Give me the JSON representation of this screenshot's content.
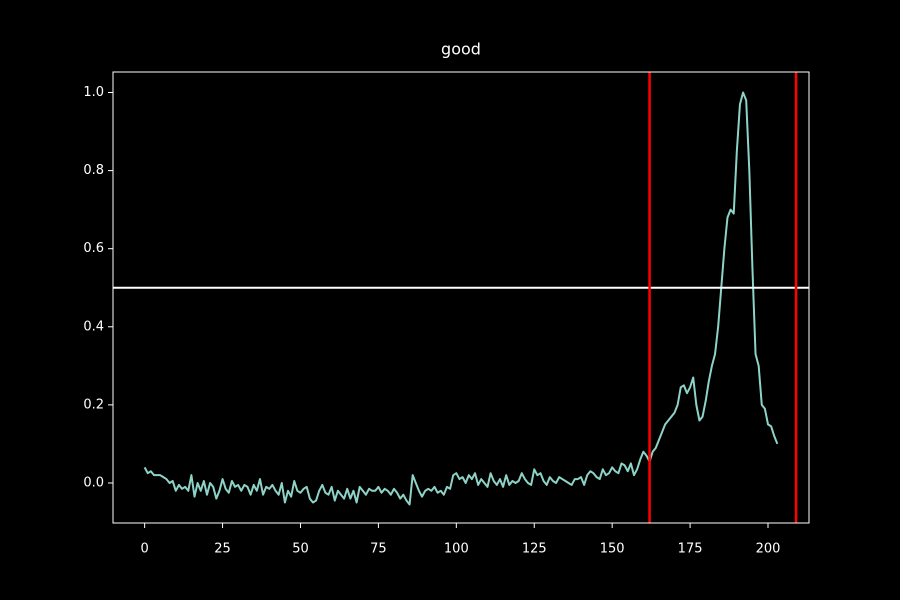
{
  "chart_data": {
    "type": "line",
    "title": "good",
    "color": "#8dd3c7",
    "x": [
      0,
      1,
      2,
      3,
      4,
      5,
      6,
      7,
      8,
      9,
      10,
      11,
      12,
      13,
      14,
      15,
      16,
      17,
      18,
      19,
      20,
      21,
      22,
      23,
      24,
      25,
      26,
      27,
      28,
      29,
      30,
      31,
      32,
      33,
      34,
      35,
      36,
      37,
      38,
      39,
      40,
      41,
      42,
      43,
      44,
      45,
      46,
      47,
      48,
      49,
      50,
      51,
      52,
      53,
      54,
      55,
      56,
      57,
      58,
      59,
      60,
      61,
      62,
      63,
      64,
      65,
      66,
      67,
      68,
      69,
      70,
      71,
      72,
      73,
      74,
      75,
      76,
      77,
      78,
      79,
      80,
      81,
      82,
      83,
      84,
      85,
      86,
      87,
      88,
      89,
      90,
      91,
      92,
      93,
      94,
      95,
      96,
      97,
      98,
      99,
      100,
      101,
      102,
      103,
      104,
      105,
      106,
      107,
      108,
      109,
      110,
      111,
      112,
      113,
      114,
      115,
      116,
      117,
      118,
      119,
      120,
      121,
      122,
      123,
      124,
      125,
      126,
      127,
      128,
      129,
      130,
      131,
      132,
      133,
      134,
      135,
      136,
      137,
      138,
      139,
      140,
      141,
      142,
      143,
      144,
      145,
      146,
      147,
      148,
      149,
      150,
      151,
      152,
      153,
      154,
      155,
      156,
      157,
      158,
      159,
      160,
      161,
      162,
      163,
      164,
      165,
      166,
      167,
      168,
      169,
      170,
      171,
      172,
      173,
      174,
      175,
      176,
      177,
      178,
      179,
      180,
      181,
      182,
      183,
      184,
      185,
      186,
      187,
      188,
      189,
      190,
      191,
      192,
      193,
      194,
      195,
      196,
      197,
      198,
      199,
      200,
      201,
      202,
      203
    ],
    "values": [
      0.04,
      0.025,
      0.03,
      0.02,
      0.02,
      0.02,
      0.015,
      0.01,
      0.0,
      0.005,
      -0.02,
      -0.005,
      -0.015,
      -0.01,
      -0.02,
      0.02,
      -0.035,
      0.0,
      -0.02,
      0.005,
      -0.03,
      0.0,
      -0.01,
      -0.04,
      -0.02,
      0.01,
      -0.015,
      -0.025,
      0.005,
      -0.01,
      -0.005,
      -0.02,
      -0.005,
      -0.01,
      -0.03,
      -0.005,
      -0.02,
      0.01,
      -0.03,
      -0.01,
      -0.015,
      -0.005,
      -0.02,
      -0.03,
      0.0,
      -0.05,
      -0.02,
      -0.035,
      0.005,
      -0.02,
      -0.025,
      -0.015,
      -0.01,
      -0.04,
      -0.05,
      -0.045,
      -0.02,
      -0.005,
      -0.025,
      -0.03,
      -0.01,
      -0.045,
      -0.02,
      -0.03,
      -0.04,
      -0.015,
      -0.04,
      -0.02,
      -0.05,
      -0.01,
      -0.02,
      -0.03,
      -0.015,
      -0.02,
      -0.02,
      -0.01,
      -0.025,
      -0.015,
      -0.02,
      -0.03,
      -0.015,
      -0.025,
      -0.04,
      -0.03,
      -0.045,
      -0.055,
      0.02,
      0.0,
      -0.02,
      -0.035,
      -0.02,
      -0.015,
      -0.02,
      -0.01,
      -0.025,
      -0.02,
      -0.03,
      -0.01,
      -0.015,
      0.02,
      0.025,
      0.01,
      0.015,
      0.0,
      0.02,
      0.01,
      0.025,
      -0.005,
      0.01,
      0.0,
      -0.01,
      0.025,
      0.005,
      -0.005,
      0.01,
      -0.01,
      0.02,
      -0.005,
      0.005,
      0.0,
      0.005,
      0.025,
      0.01,
      0.0,
      -0.005,
      0.035,
      0.02,
      0.025,
      0.005,
      -0.005,
      0.015,
      0.005,
      0.0,
      0.015,
      0.01,
      0.005,
      0.0,
      -0.005,
      0.01,
      0.01,
      0.015,
      -0.005,
      0.02,
      0.03,
      0.025,
      0.015,
      0.01,
      0.035,
      0.02,
      0.025,
      0.04,
      0.03,
      0.025,
      0.05,
      0.045,
      0.03,
      0.05,
      0.02,
      0.035,
      0.06,
      0.08,
      0.07,
      0.055,
      0.08,
      0.09,
      0.11,
      0.13,
      0.15,
      0.16,
      0.17,
      0.18,
      0.2,
      0.245,
      0.25,
      0.23,
      0.245,
      0.27,
      0.2,
      0.16,
      0.17,
      0.21,
      0.26,
      0.3,
      0.33,
      0.4,
      0.5,
      0.6,
      0.68,
      0.7,
      0.69,
      0.85,
      0.97,
      1.0,
      0.98,
      0.8,
      0.55,
      0.33,
      0.3,
      0.2,
      0.19,
      0.15,
      0.145,
      0.12,
      0.1
    ],
    "xlim": [
      -10.15,
      213.15
    ],
    "xticks": [
      0,
      25,
      50,
      75,
      100,
      125,
      150,
      175,
      200
    ],
    "ylim": [
      -0.1025,
      1.0525
    ],
    "yticks": [
      {
        "value": 0,
        "label": "0.0"
      },
      0.2,
      0.4,
      0.6,
      0.8,
      {
        "value": 1,
        "label": "1.0"
      }
    ],
    "hlines": [
      {
        "value": 0.5,
        "color": "#ffffff"
      }
    ],
    "vlines": [
      {
        "value": 162,
        "color": "#ff0000"
      },
      {
        "value": 209,
        "color": "#ff0000"
      }
    ]
  }
}
